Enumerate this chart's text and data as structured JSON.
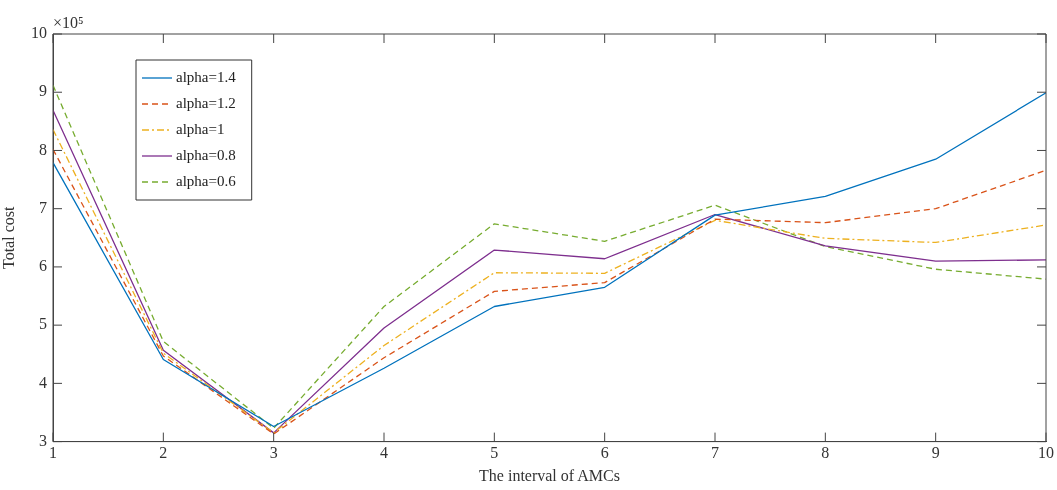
{
  "chart_data": {
    "type": "line",
    "xlabel": "The interval of AMCs",
    "ylabel": "Total cost",
    "annotations": [
      "×10⁵"
    ],
    "x": [
      1,
      2,
      3,
      4,
      5,
      6,
      7,
      8,
      9,
      10
    ],
    "xlim": [
      1,
      10
    ],
    "xticks": [
      1,
      2,
      3,
      4,
      5,
      6,
      7,
      8,
      9,
      10
    ],
    "ylim": [
      3,
      10
    ],
    "yticks": [
      3,
      4,
      5,
      6,
      7,
      8,
      9,
      10
    ],
    "grid": false,
    "legend": "top left",
    "marker": "none",
    "series": [
      {
        "name": "alpha=1.4",
        "color": "#0072bd",
        "line_style": "solid",
        "values": [
          7.79,
          4.41,
          3.26,
          4.26,
          5.32,
          5.65,
          6.89,
          7.21,
          7.85,
          8.99
        ]
      },
      {
        "name": "alpha=1.2",
        "color": "#d95319",
        "line_style": "dashed",
        "values": [
          8.02,
          4.47,
          3.13,
          4.44,
          5.58,
          5.73,
          6.82,
          6.76,
          7.0,
          7.66
        ]
      },
      {
        "name": "alpha=1",
        "color": "#edb120",
        "line_style": "dashdot",
        "values": [
          8.36,
          4.52,
          3.15,
          4.65,
          5.9,
          5.89,
          6.8,
          6.49,
          6.42,
          6.72
        ]
      },
      {
        "name": "alpha=0.8",
        "color": "#7e2f8e",
        "line_style": "solid",
        "values": [
          8.69,
          4.57,
          3.15,
          4.95,
          6.29,
          6.14,
          6.9,
          6.36,
          6.1,
          6.12
        ]
      },
      {
        "name": "alpha=0.6",
        "color": "#77ac30",
        "line_style": "dashed",
        "values": [
          9.12,
          4.72,
          3.23,
          5.32,
          6.74,
          6.44,
          7.06,
          6.35,
          5.96,
          5.79
        ]
      }
    ]
  }
}
